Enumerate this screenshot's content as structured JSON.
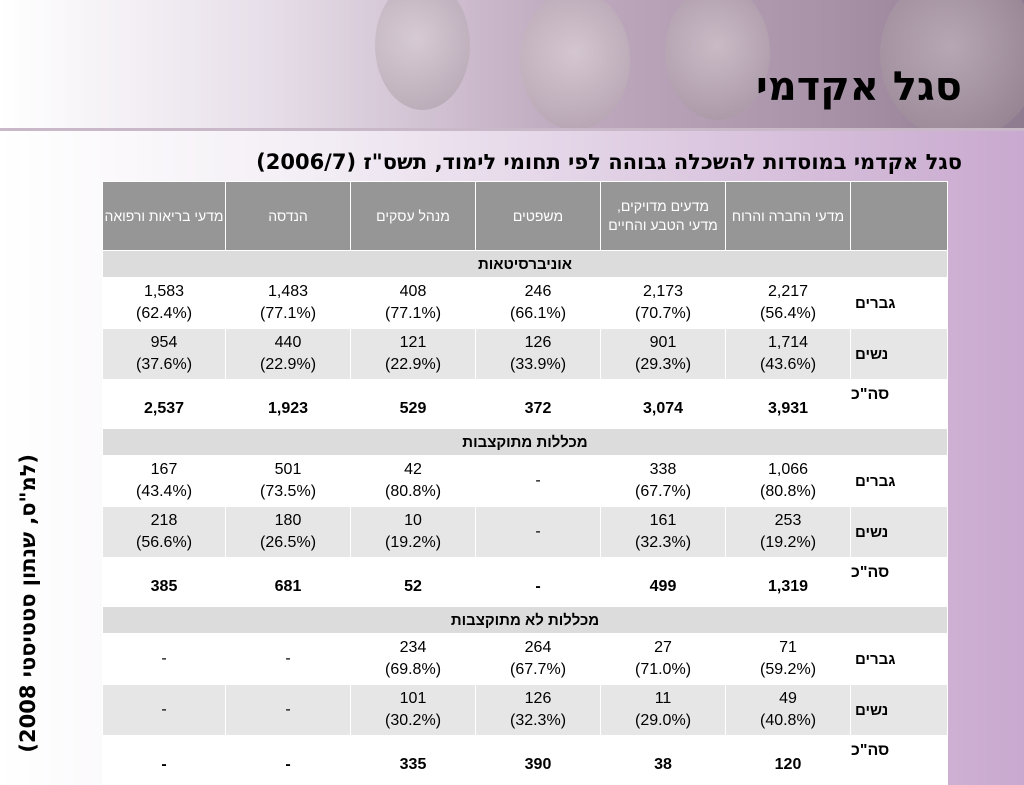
{
  "title": "סגל אקדמי",
  "subtitle": "סגל אקדמי במוסדות להשכלה גבוהה לפי תחומי לימוד, תשס\"ז (2006/7)",
  "source": "(למ\"ס, שנתון סטטיסטי 2008)",
  "columns": [
    "מדעי החברה והרוח",
    "מדעים מדויקים, מדעי הטבע והחיים",
    "משפטים",
    "מנהל עסקים",
    "הנדסה",
    "מדעי בריאות ורפואה"
  ],
  "sections": [
    {
      "name": "אוניברסיטאות",
      "rows": [
        {
          "label": "גברים",
          "cells": [
            {
              "v": "2,217",
              "p": "(56.4%)"
            },
            {
              "v": "2,173",
              "p": "(70.7%)"
            },
            {
              "v": "246",
              "p": "(66.1%)"
            },
            {
              "v": "408",
              "p": "(77.1%)"
            },
            {
              "v": "1,483",
              "p": "(77.1%)"
            },
            {
              "v": "1,583",
              "p": "(62.4%)"
            }
          ]
        },
        {
          "label": "נשים",
          "cells": [
            {
              "v": "1,714",
              "p": "(43.6%)"
            },
            {
              "v": "901",
              "p": "(29.3%)"
            },
            {
              "v": "126",
              "p": "(33.9%)"
            },
            {
              "v": "121",
              "p": "(22.9%)"
            },
            {
              "v": "440",
              "p": "(22.9%)"
            },
            {
              "v": "954",
              "p": "(37.6%)"
            }
          ]
        }
      ],
      "total_label": "סה\"כ",
      "totals": [
        "3,931",
        "3,074",
        "372",
        "529",
        "1,923",
        "2,537"
      ]
    },
    {
      "name": "מכללות מתוקצבות",
      "rows": [
        {
          "label": "גברים",
          "cells": [
            {
              "v": "1,066",
              "p": "(80.8%)"
            },
            {
              "v": "338",
              "p": "(67.7%)"
            },
            {
              "v": "-",
              "p": ""
            },
            {
              "v": "42",
              "p": "(80.8%)"
            },
            {
              "v": "501",
              "p": "(73.5%)"
            },
            {
              "v": "167",
              "p": "(43.4%)"
            }
          ]
        },
        {
          "label": "נשים",
          "cells": [
            {
              "v": "253",
              "p": "(19.2%)"
            },
            {
              "v": "161",
              "p": "(32.3%)"
            },
            {
              "v": "-",
              "p": ""
            },
            {
              "v": "10",
              "p": "(19.2%)"
            },
            {
              "v": "180",
              "p": "(26.5%)"
            },
            {
              "v": "218",
              "p": "(56.6%)"
            }
          ]
        }
      ],
      "total_label": "סה\"כ",
      "totals": [
        "1,319",
        "499",
        "-",
        "52",
        "681",
        "385"
      ]
    },
    {
      "name": "מכללות לא מתוקצבות",
      "rows": [
        {
          "label": "גברים",
          "cells": [
            {
              "v": "71",
              "p": "(59.2%)"
            },
            {
              "v": "27",
              "p": "(71.0%)"
            },
            {
              "v": "264",
              "p": "(67.7%)"
            },
            {
              "v": "234",
              "p": "(69.8%)"
            },
            {
              "v": "-",
              "p": ""
            },
            {
              "v": "-",
              "p": ""
            }
          ]
        },
        {
          "label": "נשים",
          "cells": [
            {
              "v": "49",
              "p": "(40.8%)"
            },
            {
              "v": "11",
              "p": "(29.0%)"
            },
            {
              "v": "126",
              "p": "(32.3%)"
            },
            {
              "v": "101",
              "p": "(30.2%)"
            },
            {
              "v": "-",
              "p": ""
            },
            {
              "v": "-",
              "p": ""
            }
          ]
        }
      ],
      "total_label": "סה\"כ",
      "totals": [
        "120",
        "38",
        "390",
        "335",
        "-",
        "-"
      ]
    }
  ]
}
